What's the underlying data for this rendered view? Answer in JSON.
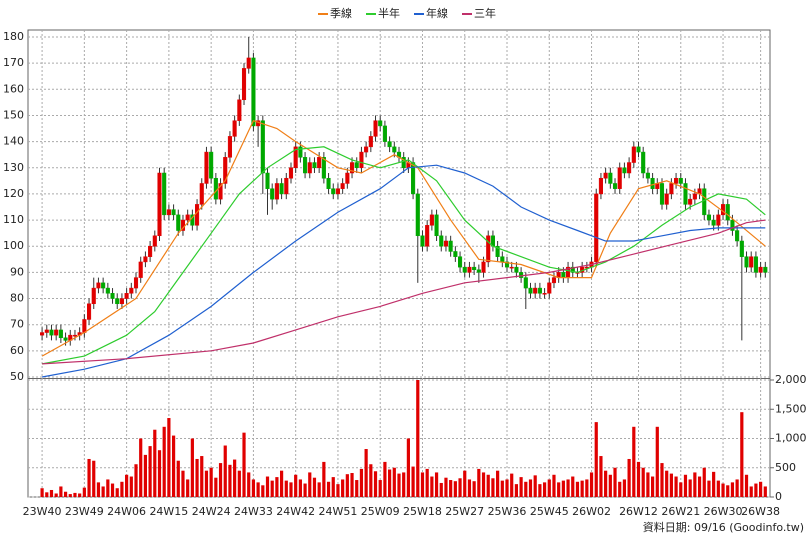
{
  "chart_data": {
    "type": "candlestick",
    "footnote": "資料日期: 09/16 (Goodinfo.tw)",
    "xlim": [
      -3,
      155
    ],
    "xticks": [
      {
        "value": 0,
        "label": "23W40"
      },
      {
        "value": 9,
        "label": "23W49"
      },
      {
        "value": 18,
        "label": "24W06"
      },
      {
        "value": 27,
        "label": "24W15"
      },
      {
        "value": 36,
        "label": "24W24"
      },
      {
        "value": 45,
        "label": "24W33"
      },
      {
        "value": 54,
        "label": "24W42"
      },
      {
        "value": 63,
        "label": "24W51"
      },
      {
        "value": 72,
        "label": "25W09"
      },
      {
        "value": 81,
        "label": "25W18"
      },
      {
        "value": 90,
        "label": "25W27"
      },
      {
        "value": 99,
        "label": "25W36"
      },
      {
        "value": 108,
        "label": "25W45"
      },
      {
        "value": 117,
        "label": "26W02"
      },
      {
        "value": 127,
        "label": "26W12"
      },
      {
        "value": 136,
        "label": "26W21"
      },
      {
        "value": 145,
        "label": "26W30"
      },
      {
        "value": 153,
        "label": "26W38"
      }
    ],
    "ylim": [
      50,
      180
    ],
    "yticks": [
      50,
      60,
      70,
      80,
      90,
      100,
      110,
      120,
      130,
      140,
      150,
      160,
      170,
      180
    ],
    "y2lim": [
      0,
      2000
    ],
    "y2ticks": [
      0,
      500,
      {
        "value": 1000,
        "label": "1,000"
      },
      {
        "value": 1500,
        "label": "1,500"
      },
      {
        "value": 2000,
        "label": "2,000"
      }
    ],
    "grid": true,
    "up_color": "#e00000",
    "down_color": "#00a800",
    "candles": {
      "open": [
        66,
        67,
        68,
        66,
        68,
        65,
        64,
        66,
        66,
        67,
        72,
        78,
        84,
        86,
        84,
        82,
        80,
        78,
        80,
        82,
        84,
        88,
        94,
        96,
        100,
        104,
        128,
        112,
        114,
        112,
        106,
        110,
        112,
        108,
        116,
        124,
        136,
        126,
        118,
        124,
        134,
        142,
        148,
        156,
        168,
        172,
        146,
        148,
        128,
        122,
        118,
        124,
        120,
        126,
        130,
        138,
        134,
        128,
        132,
        130,
        134,
        126,
        122,
        120,
        122,
        124,
        128,
        132,
        130,
        136,
        138,
        142,
        148,
        146,
        140,
        138,
        136,
        134,
        130,
        132,
        120,
        104,
        100,
        108,
        112,
        104,
        100,
        102,
        98,
        96,
        92,
        90,
        92,
        91,
        90,
        94,
        104,
        100,
        96,
        94,
        92,
        92,
        90,
        88,
        84,
        82,
        84,
        82,
        82,
        86,
        88,
        90,
        88,
        92,
        90,
        90,
        92,
        92,
        94,
        120,
        126,
        128,
        124,
        122,
        130,
        128,
        132,
        138,
        136,
        128,
        126,
        122,
        124,
        116,
        120,
        124,
        126,
        124,
        116,
        118,
        120,
        122,
        112,
        110,
        108,
        112,
        116,
        110,
        106,
        102,
        96,
        92,
        96,
        90,
        92
      ],
      "high": [
        69,
        70,
        70,
        70,
        70,
        67,
        68,
        68,
        69,
        74,
        80,
        88,
        88,
        88,
        86,
        84,
        82,
        82,
        84,
        86,
        90,
        96,
        98,
        102,
        106,
        130,
        130,
        116,
        116,
        114,
        112,
        114,
        114,
        118,
        126,
        138,
        138,
        128,
        126,
        136,
        144,
        150,
        158,
        170,
        180,
        174,
        150,
        150,
        130,
        124,
        126,
        126,
        128,
        132,
        140,
        140,
        136,
        134,
        134,
        136,
        136,
        128,
        124,
        124,
        126,
        130,
        134,
        134,
        138,
        140,
        144,
        150,
        150,
        148,
        142,
        140,
        138,
        136,
        134,
        134,
        122,
        106,
        110,
        114,
        114,
        106,
        104,
        104,
        100,
        98,
        94,
        94,
        94,
        93,
        96,
        106,
        106,
        102,
        98,
        96,
        94,
        94,
        92,
        90,
        86,
        86,
        86,
        84,
        88,
        90,
        92,
        92,
        94,
        94,
        92,
        94,
        94,
        96,
        122,
        128,
        130,
        130,
        126,
        132,
        132,
        134,
        140,
        140,
        138,
        130,
        128,
        126,
        126,
        122,
        126,
        128,
        128,
        126,
        120,
        122,
        124,
        124,
        114,
        112,
        114,
        118,
        118,
        112,
        108,
        104,
        98,
        98,
        98,
        94,
        94
      ],
      "low": [
        64,
        65,
        64,
        64,
        63,
        62,
        62,
        64,
        64,
        65,
        70,
        76,
        82,
        82,
        80,
        78,
        76,
        76,
        78,
        80,
        82,
        86,
        92,
        94,
        98,
        102,
        110,
        110,
        110,
        104,
        104,
        108,
        106,
        106,
        114,
        122,
        124,
        116,
        116,
        122,
        132,
        140,
        146,
        154,
        166,
        144,
        138,
        120,
        112,
        114,
        116,
        118,
        118,
        124,
        128,
        132,
        126,
        126,
        128,
        128,
        124,
        120,
        118,
        118,
        120,
        122,
        126,
        128,
        128,
        134,
        136,
        140,
        144,
        138,
        136,
        134,
        132,
        128,
        128,
        118,
        86,
        98,
        98,
        106,
        102,
        98,
        98,
        96,
        94,
        90,
        88,
        88,
        89,
        86,
        88,
        92,
        98,
        94,
        92,
        90,
        90,
        88,
        86,
        76,
        80,
        80,
        80,
        80,
        80,
        84,
        86,
        86,
        86,
        88,
        88,
        88,
        90,
        90,
        92,
        118,
        124,
        122,
        120,
        120,
        126,
        126,
        130,
        134,
        126,
        124,
        120,
        120,
        114,
        114,
        118,
        122,
        122,
        114,
        114,
        116,
        118,
        110,
        108,
        106,
        106,
        110,
        108,
        104,
        100,
        64,
        90,
        90,
        88,
        88,
        88
      ],
      "close": [
        67,
        68,
        66,
        68,
        65,
        64,
        66,
        66,
        67,
        72,
        78,
        84,
        86,
        84,
        82,
        80,
        78,
        80,
        82,
        84,
        88,
        94,
        96,
        100,
        104,
        128,
        112,
        114,
        112,
        106,
        110,
        112,
        108,
        116,
        124,
        136,
        126,
        118,
        124,
        134,
        142,
        148,
        156,
        168,
        172,
        146,
        148,
        128,
        122,
        118,
        124,
        120,
        126,
        130,
        138,
        134,
        128,
        132,
        130,
        134,
        126,
        122,
        120,
        122,
        124,
        128,
        132,
        130,
        136,
        138,
        142,
        148,
        146,
        140,
        138,
        136,
        134,
        130,
        132,
        120,
        104,
        100,
        108,
        112,
        104,
        100,
        102,
        98,
        96,
        92,
        90,
        92,
        91,
        90,
        94,
        104,
        100,
        96,
        94,
        92,
        92,
        90,
        88,
        84,
        82,
        84,
        82,
        82,
        86,
        88,
        90,
        88,
        92,
        90,
        90,
        92,
        92,
        94,
        120,
        126,
        128,
        124,
        122,
        130,
        128,
        132,
        138,
        136,
        128,
        126,
        122,
        124,
        116,
        120,
        124,
        126,
        124,
        116,
        118,
        120,
        122,
        112,
        110,
        108,
        112,
        116,
        110,
        106,
        102,
        96,
        92,
        96,
        90,
        92,
        90
      ]
    },
    "volume": {
      "color": "#e00000",
      "values": [
        150,
        80,
        120,
        60,
        180,
        90,
        50,
        70,
        60,
        160,
        650,
        620,
        250,
        180,
        300,
        230,
        150,
        260,
        380,
        350,
        560,
        1000,
        720,
        870,
        1150,
        800,
        1200,
        1350,
        1050,
        620,
        450,
        300,
        1000,
        650,
        700,
        450,
        500,
        330,
        580,
        880,
        550,
        640,
        450,
        1100,
        420,
        300,
        250,
        200,
        350,
        280,
        340,
        450,
        280,
        250,
        380,
        300,
        230,
        420,
        330,
        250,
        600,
        260,
        340,
        220,
        300,
        390,
        410,
        290,
        480,
        820,
        560,
        440,
        290,
        600,
        470,
        500,
        400,
        420,
        1000,
        520,
        2000,
        420,
        480,
        350,
        420,
        240,
        330,
        290,
        270,
        320,
        450,
        300,
        270,
        480,
        420,
        380,
        320,
        450,
        280,
        300,
        400,
        220,
        340,
        260,
        300,
        370,
        220,
        250,
        300,
        380,
        250,
        280,
        300,
        350,
        260,
        280,
        300,
        420,
        1280,
        700,
        450,
        380,
        500,
        260,
        300,
        650,
        1200,
        600,
        500,
        420,
        350,
        1200,
        580,
        450,
        400,
        350,
        250,
        380,
        300,
        420,
        350,
        500,
        280,
        430,
        280,
        230,
        200,
        250,
        300,
        1450,
        380,
        180,
        230,
        260,
        180
      ]
    },
    "series": [
      {
        "name": "季線",
        "color": "#f07f17",
        "x": [
          0,
          9,
          20,
          29,
          39,
          45,
          50,
          54,
          63,
          68,
          75,
          80,
          87,
          93,
          102,
          110,
          117,
          121,
          127,
          133,
          140,
          146,
          154
        ],
        "values": [
          58,
          67,
          80,
          105,
          125,
          148,
          145,
          140,
          130,
          128,
          135,
          130,
          110,
          95,
          93,
          88,
          88,
          105,
          122,
          125,
          120,
          112,
          100
        ]
      },
      {
        "name": "半年",
        "color": "#2ecc2e",
        "x": [
          0,
          9,
          18,
          24,
          30,
          36,
          42,
          48,
          54,
          60,
          66,
          72,
          78,
          84,
          90,
          96,
          102,
          108,
          114,
          120,
          126,
          132,
          138,
          144,
          150,
          154
        ],
        "values": [
          55,
          58,
          66,
          75,
          90,
          105,
          120,
          130,
          137,
          138,
          133,
          130,
          133,
          125,
          110,
          100,
          96,
          92,
          90,
          94,
          100,
          108,
          115,
          120,
          118,
          112
        ]
      },
      {
        "name": "年線",
        "color": "#2060d0",
        "x": [
          0,
          9,
          18,
          27,
          36,
          45,
          54,
          63,
          72,
          78,
          84,
          90,
          96,
          102,
          108,
          114,
          120,
          126,
          132,
          138,
          144,
          150,
          154
        ],
        "values": [
          50,
          53,
          57,
          66,
          77,
          90,
          102,
          113,
          122,
          130,
          131,
          128,
          123,
          115,
          110,
          106,
          102,
          102,
          104,
          106,
          107,
          107,
          107
        ]
      },
      {
        "name": "三年",
        "color": "#c0306a",
        "x": [
          0,
          18,
          36,
          45,
          54,
          63,
          72,
          81,
          90,
          99,
          108,
          117,
          126,
          135,
          144,
          150,
          154
        ],
        "values": [
          55,
          57,
          60,
          63,
          68,
          73,
          77,
          82,
          86,
          88,
          90,
          93,
          97,
          101,
          105,
          109,
          110
        ]
      }
    ]
  }
}
